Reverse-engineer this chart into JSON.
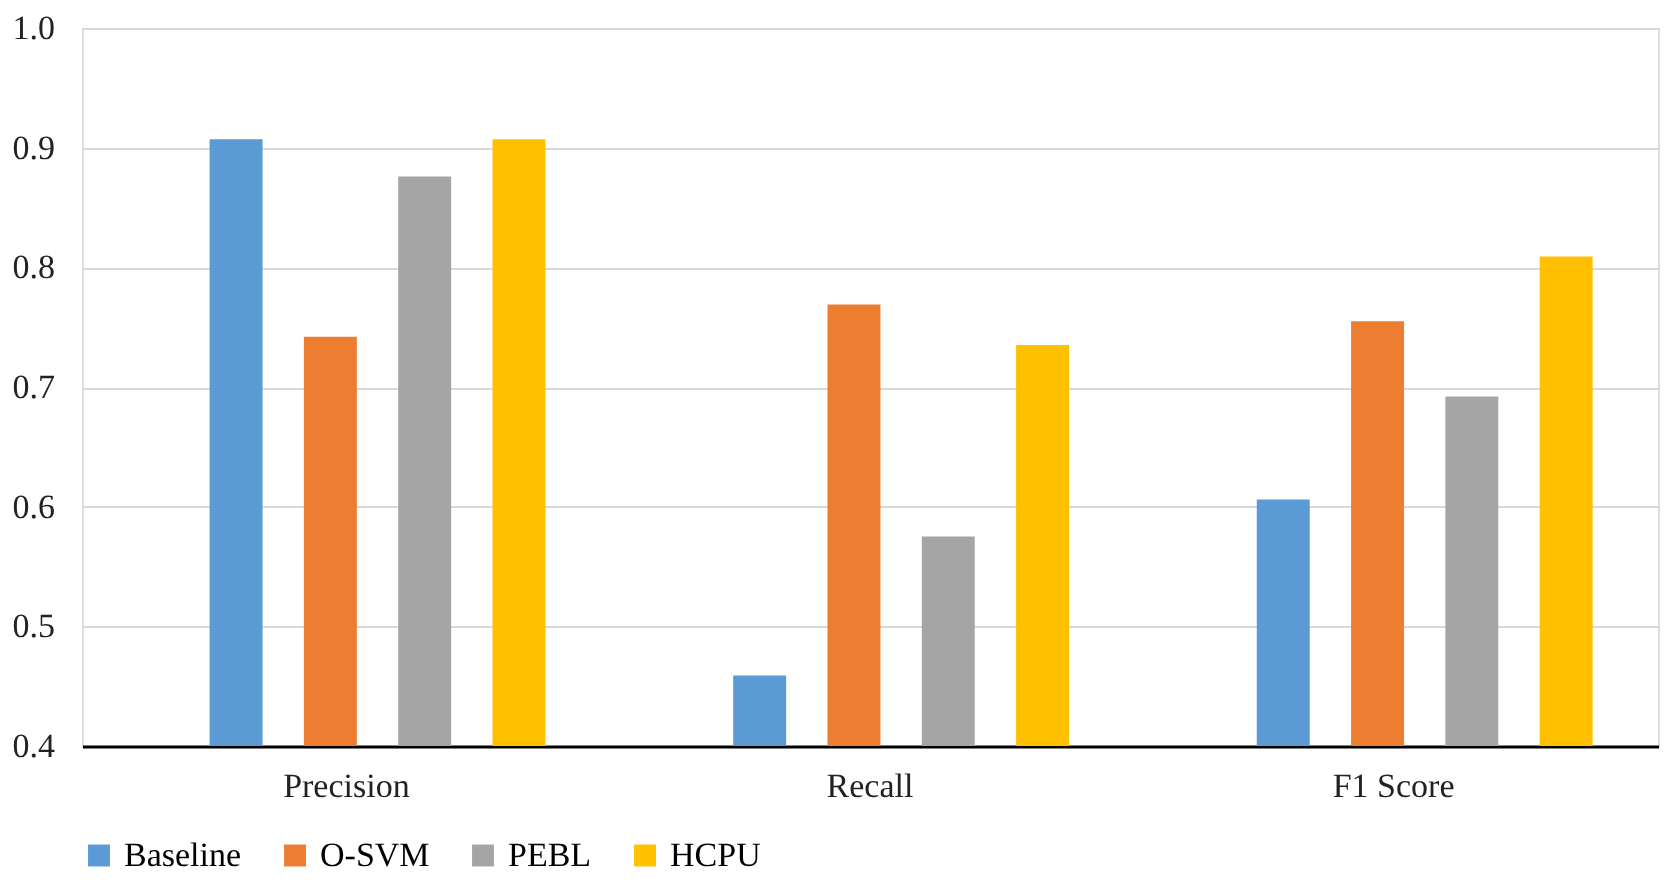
{
  "chart_data": {
    "type": "bar",
    "categories": [
      "Precision",
      "Recall",
      "F1 Score"
    ],
    "series": [
      {
        "name": "Baseline",
        "color": "#5b9bd5",
        "values": [
          0.907,
          0.459,
          0.606
        ]
      },
      {
        "name": "O-SVM",
        "color": "#ed7d31",
        "values": [
          0.742,
          0.769,
          0.755
        ]
      },
      {
        "name": "PEBL",
        "color": "#a5a5a5",
        "values": [
          0.876,
          0.575,
          0.692
        ]
      },
      {
        "name": "HCPU",
        "color": "#ffc000",
        "values": [
          0.907,
          0.735,
          0.809
        ]
      }
    ],
    "ylim": [
      0.4,
      1.0
    ],
    "yticks": [
      {
        "value": 0.4,
        "label": "0.4"
      },
      {
        "value": 0.5,
        "label": "0.5"
      },
      {
        "value": 0.6,
        "label": "0.6"
      },
      {
        "value": 0.7,
        "label": "0.7"
      },
      {
        "value": 0.8,
        "label": "0.8"
      },
      {
        "value": 0.9,
        "label": "0.9"
      },
      {
        "value": 1.0,
        "label": "1.0"
      }
    ],
    "grid": "y",
    "legend": "bottom"
  }
}
